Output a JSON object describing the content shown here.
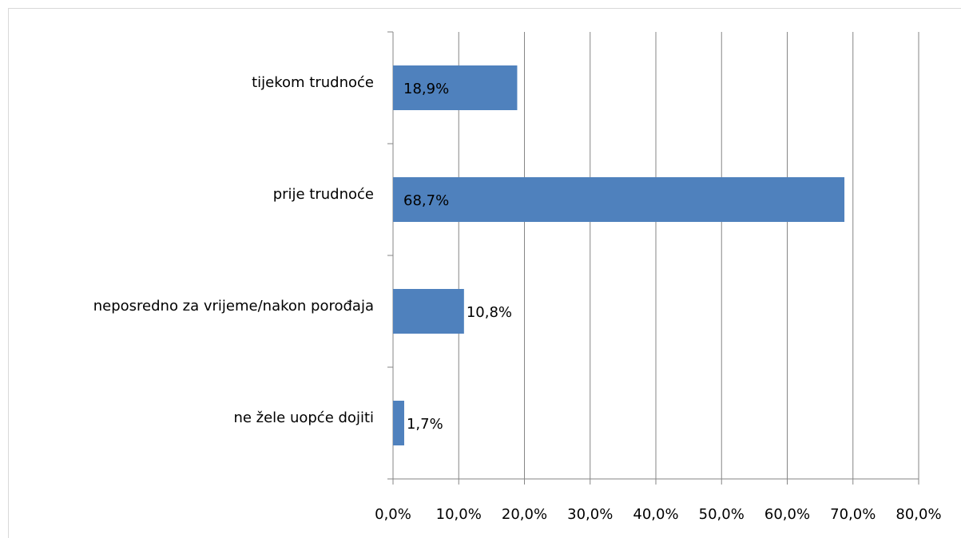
{
  "chart_data": {
    "type": "bar",
    "orientation": "horizontal",
    "categories": [
      "tijekom trudnoće",
      "prije trudnoće",
      "neposredno za vrijeme/nakon porođaja",
      "ne žele uopće dojiti"
    ],
    "values": [
      18.9,
      68.7,
      10.8,
      1.7
    ],
    "value_labels": [
      "18,9%",
      "68,7%",
      "10,8%",
      "1,7%"
    ],
    "color": "#4f81bd",
    "xlim": [
      0,
      80
    ],
    "xticks": [
      {
        "value": 0,
        "label": "0,0%"
      },
      {
        "value": 10,
        "label": "10,0%"
      },
      {
        "value": 20,
        "label": "20,0%"
      },
      {
        "value": 30,
        "label": "30,0%"
      },
      {
        "value": 40,
        "label": "40,0%"
      },
      {
        "value": 50,
        "label": "50,0%"
      },
      {
        "value": 60,
        "label": "60,0%"
      },
      {
        "value": 70,
        "label": "70,0%"
      },
      {
        "value": 80,
        "label": "80,0%"
      }
    ],
    "grid": true
  }
}
